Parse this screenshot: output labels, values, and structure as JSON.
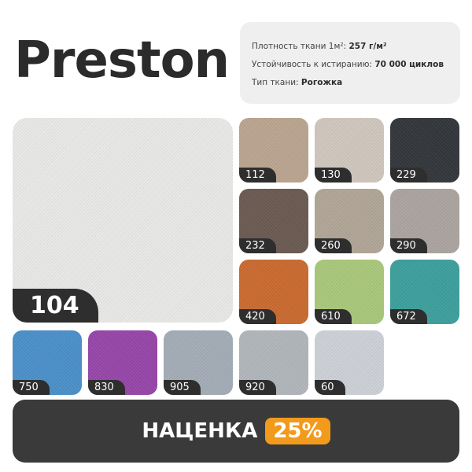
{
  "title": "Preston",
  "info": {
    "density_label": "Плотность ткани 1м²: ",
    "density_value": "257 г/м²",
    "abrasion_label": "Устойчивость к истиранию: ",
    "abrasion_value": "70 000 циклов",
    "type_label": "Тип ткани: ",
    "type_value": "Рогожка"
  },
  "main_swatch": {
    "code": "104",
    "color": "#e8e8e6"
  },
  "swatches": [
    {
      "code": "112",
      "color": "#b9a48f"
    },
    {
      "code": "130",
      "color": "#cfc6bd"
    },
    {
      "code": "229",
      "color": "#33373b"
    },
    {
      "code": "232",
      "color": "#6a5a52"
    },
    {
      "code": "260",
      "color": "#b0a596"
    },
    {
      "code": "290",
      "color": "#aaa39f"
    },
    {
      "code": "420",
      "color": "#c96a30"
    },
    {
      "code": "610",
      "color": "#a9c77a"
    },
    {
      "code": "672",
      "color": "#3d9f9c"
    },
    {
      "code": "750",
      "color": "#4b8fc8"
    },
    {
      "code": "830",
      "color": "#9646a8"
    },
    {
      "code": "905",
      "color": "#a3acb6"
    },
    {
      "code": "920",
      "color": "#b0b5b9"
    },
    {
      "code": "60",
      "color": "#ccd0d6"
    }
  ],
  "banner": {
    "text": "НАЦЕНКА",
    "percent": "25%",
    "accent": "#f29a1c"
  }
}
